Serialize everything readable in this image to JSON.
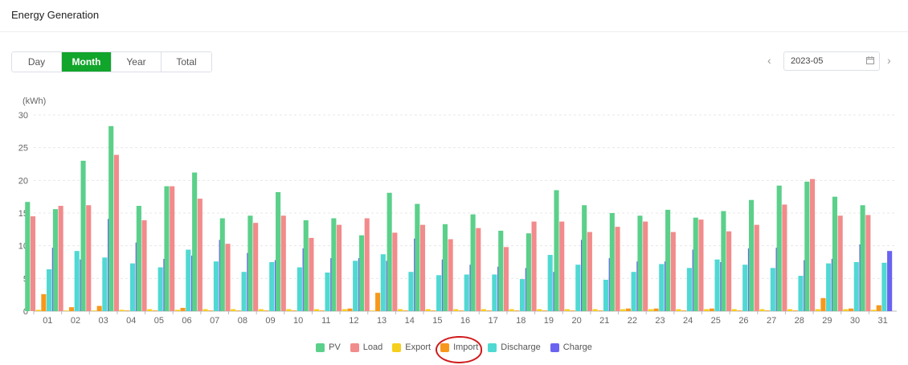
{
  "header": {
    "title": "Energy Generation"
  },
  "period_tabs": [
    "Day",
    "Month",
    "Year",
    "Total"
  ],
  "active_tab": "Month",
  "date_picker": {
    "value": "2023-05",
    "icon": "calendar-icon"
  },
  "nav": {
    "prev_icon": "chevron-left-icon",
    "next_icon": "chevron-right-icon"
  },
  "annotation": {
    "target": "Import",
    "style": "red hand-drawn circle"
  },
  "chart_data": {
    "type": "bar",
    "unit_label": "(kWh)",
    "ylim": [
      0,
      30
    ],
    "yticks": [
      0,
      5,
      10,
      15,
      20,
      25,
      30
    ],
    "grid": true,
    "legend_position": "bottom",
    "categories": [
      "01",
      "02",
      "03",
      "04",
      "05",
      "06",
      "07",
      "08",
      "09",
      "10",
      "11",
      "12",
      "13",
      "14",
      "15",
      "16",
      "17",
      "18",
      "19",
      "20",
      "21",
      "22",
      "23",
      "24",
      "25",
      "26",
      "27",
      "28",
      "29",
      "30",
      "31"
    ],
    "series": [
      {
        "name": "PV",
        "color": "#5bd08a",
        "values": [
          16.7,
          15.6,
          23.0,
          28.3,
          16.1,
          19.1,
          21.2,
          14.2,
          14.6,
          18.2,
          13.9,
          14.2,
          11.6,
          18.1,
          16.4,
          13.3,
          14.8,
          12.3,
          11.9,
          18.5,
          16.2,
          15.0,
          14.6,
          15.5,
          14.3,
          15.3,
          17.0,
          19.2,
          19.8,
          17.5,
          16.2
        ]
      },
      {
        "name": "Load",
        "color": "#f28b8b",
        "values": [
          14.5,
          16.1,
          16.2,
          23.9,
          13.9,
          19.1,
          17.2,
          10.3,
          13.5,
          14.6,
          11.2,
          13.2,
          14.2,
          12.0,
          13.2,
          11.0,
          12.7,
          9.8,
          13.7,
          13.7,
          12.1,
          12.9,
          13.7,
          12.1,
          14.0,
          12.2,
          13.2,
          16.3,
          20.2,
          14.6,
          14.7
        ]
      },
      {
        "name": "Export",
        "color": "#f5cf1b",
        "values": [
          0.2,
          0.1,
          0.1,
          0.2,
          0.3,
          0.2,
          0.3,
          0.3,
          0.3,
          0.3,
          0.3,
          0.3,
          0.1,
          0.3,
          0.3,
          0.3,
          0.3,
          0.3,
          0.3,
          0.3,
          0.3,
          0.3,
          0.3,
          0.3,
          0.3,
          0.3,
          0.3,
          0.3,
          0.3,
          0.3,
          0.2
        ]
      },
      {
        "name": "Import",
        "color": "#f7981d",
        "values": [
          2.6,
          0.6,
          0.8,
          0.1,
          0.1,
          0.5,
          0.1,
          0.1,
          0.1,
          0.1,
          0.1,
          0.4,
          2.8,
          0.1,
          0.1,
          0.1,
          0.1,
          0.1,
          0.1,
          0.1,
          0.1,
          0.4,
          0.4,
          0.1,
          0.4,
          0.1,
          0.1,
          0.1,
          2.0,
          0.4,
          0.9
        ]
      },
      {
        "name": "Discharge",
        "color": "#4fd9d2",
        "values": [
          6.4,
          9.2,
          8.2,
          7.3,
          6.7,
          9.4,
          7.6,
          6.0,
          7.5,
          6.7,
          5.9,
          7.7,
          8.7,
          6.0,
          5.5,
          5.6,
          5.6,
          4.9,
          8.6,
          7.1,
          4.8,
          6.0,
          7.2,
          6.6,
          7.9,
          7.1,
          6.6,
          5.4,
          7.3,
          7.5,
          7.4
        ]
      },
      {
        "name": "Charge",
        "color": "#6a63f0",
        "values": [
          9.7,
          7.9,
          14.1,
          10.5,
          8.0,
          8.5,
          10.9,
          8.9,
          7.8,
          9.6,
          8.1,
          8.1,
          7.7,
          11.1,
          7.9,
          7.1,
          6.8,
          6.6,
          6.0,
          10.9,
          8.1,
          7.6,
          7.6,
          9.4,
          7.5,
          9.6,
          9.7,
          7.8,
          8.0,
          10.2,
          9.2
        ]
      }
    ]
  }
}
